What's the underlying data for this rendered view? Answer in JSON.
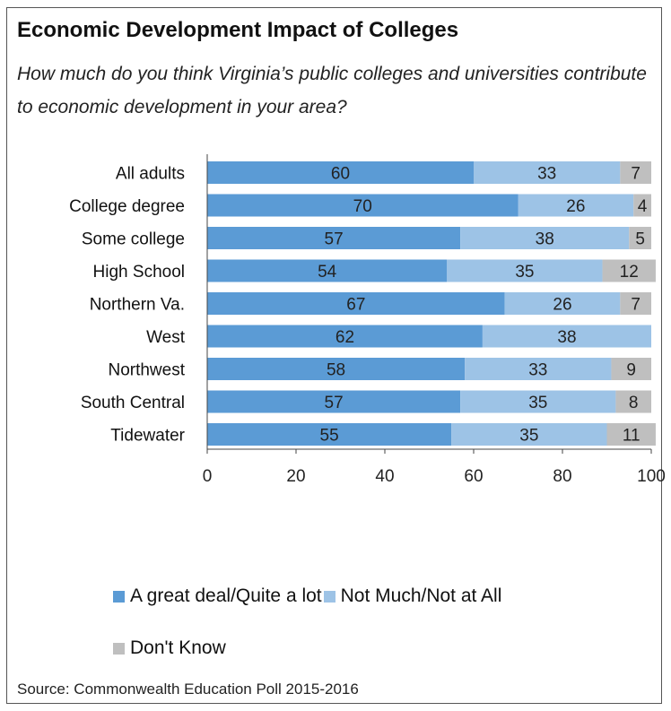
{
  "title": "Economic Development Impact of Colleges",
  "subtitle": "How much do you think Virginia’s public colleges and universities contribute to economic development in your area?",
  "source": "Source: Commonwealth Education Poll 2015-2016",
  "colors": {
    "great_deal": "#5b9bd5",
    "not_much": "#9dc3e6",
    "dont_know": "#bfbfbf",
    "axis": "#444444"
  },
  "legend": [
    {
      "label": "A great deal/Quite a lot",
      "color": "#5b9bd5"
    },
    {
      "label": "Not Much/Not at All",
      "color": "#9dc3e6"
    },
    {
      "label": "Don't Know",
      "color": "#bfbfbf"
    }
  ],
  "chart_data": {
    "type": "bar",
    "orientation": "horizontal",
    "stacked": true,
    "title": "Economic Development Impact of Colleges",
    "xlim": [
      0,
      100
    ],
    "xticks": [
      "0",
      "20",
      "40",
      "60",
      "80",
      "100"
    ],
    "grid": false,
    "legend_position": "bottom",
    "categories": [
      "All adults",
      "College degree",
      "Some college",
      "High School",
      "Northern Va.",
      "West",
      "Northwest",
      "South Central",
      "Tidewater"
    ],
    "groups": [
      [
        0
      ],
      [
        1,
        2,
        3
      ],
      [
        4,
        5,
        6,
        7,
        8
      ]
    ],
    "series": [
      {
        "name": "A great deal/Quite a lot",
        "values": [
          60,
          70,
          57,
          54,
          67,
          62,
          58,
          57,
          55
        ]
      },
      {
        "name": "Not Much/Not at All",
        "values": [
          33,
          26,
          38,
          35,
          26,
          38,
          33,
          35,
          35
        ]
      },
      {
        "name": "Don't Know",
        "values": [
          7,
          4,
          5,
          12,
          7,
          0,
          9,
          8,
          11
        ]
      }
    ]
  }
}
